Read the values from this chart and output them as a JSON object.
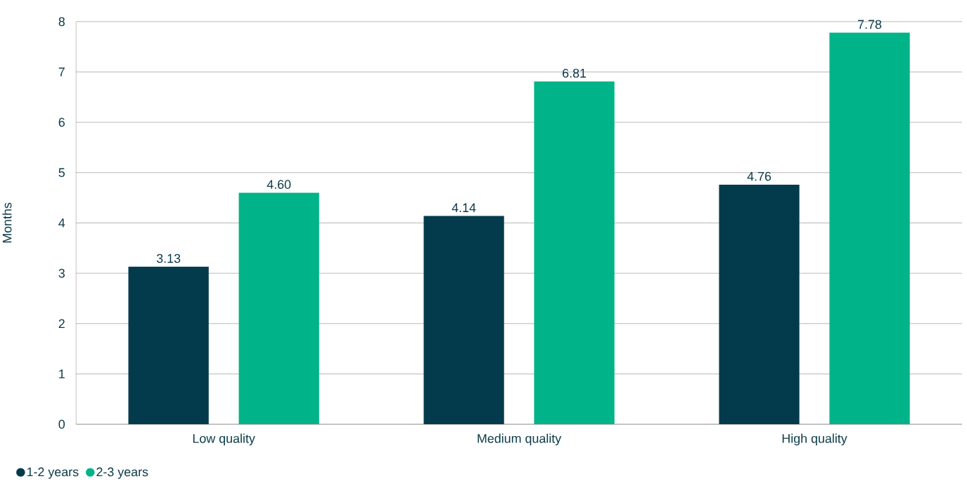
{
  "chart_data": {
    "type": "bar",
    "ylabel": "Months",
    "categories": [
      "Low quality",
      "Medium quality",
      "High quality"
    ],
    "series": [
      {
        "name": "1-2 years",
        "color": "#033b4c",
        "values": [
          3.13,
          4.14,
          4.76
        ],
        "value_labels": [
          "3.13",
          "4.14",
          "4.76"
        ]
      },
      {
        "name": "2-3 years",
        "color": "#00b388",
        "values": [
          4.6,
          6.81,
          7.78
        ],
        "value_labels": [
          "4.60",
          "6.81",
          "7.78"
        ]
      }
    ],
    "ylim": [
      0,
      8
    ],
    "yticks": [
      0,
      1,
      2,
      3,
      4,
      5,
      6,
      7,
      8
    ],
    "grid": "y",
    "legend": "bottom left"
  }
}
